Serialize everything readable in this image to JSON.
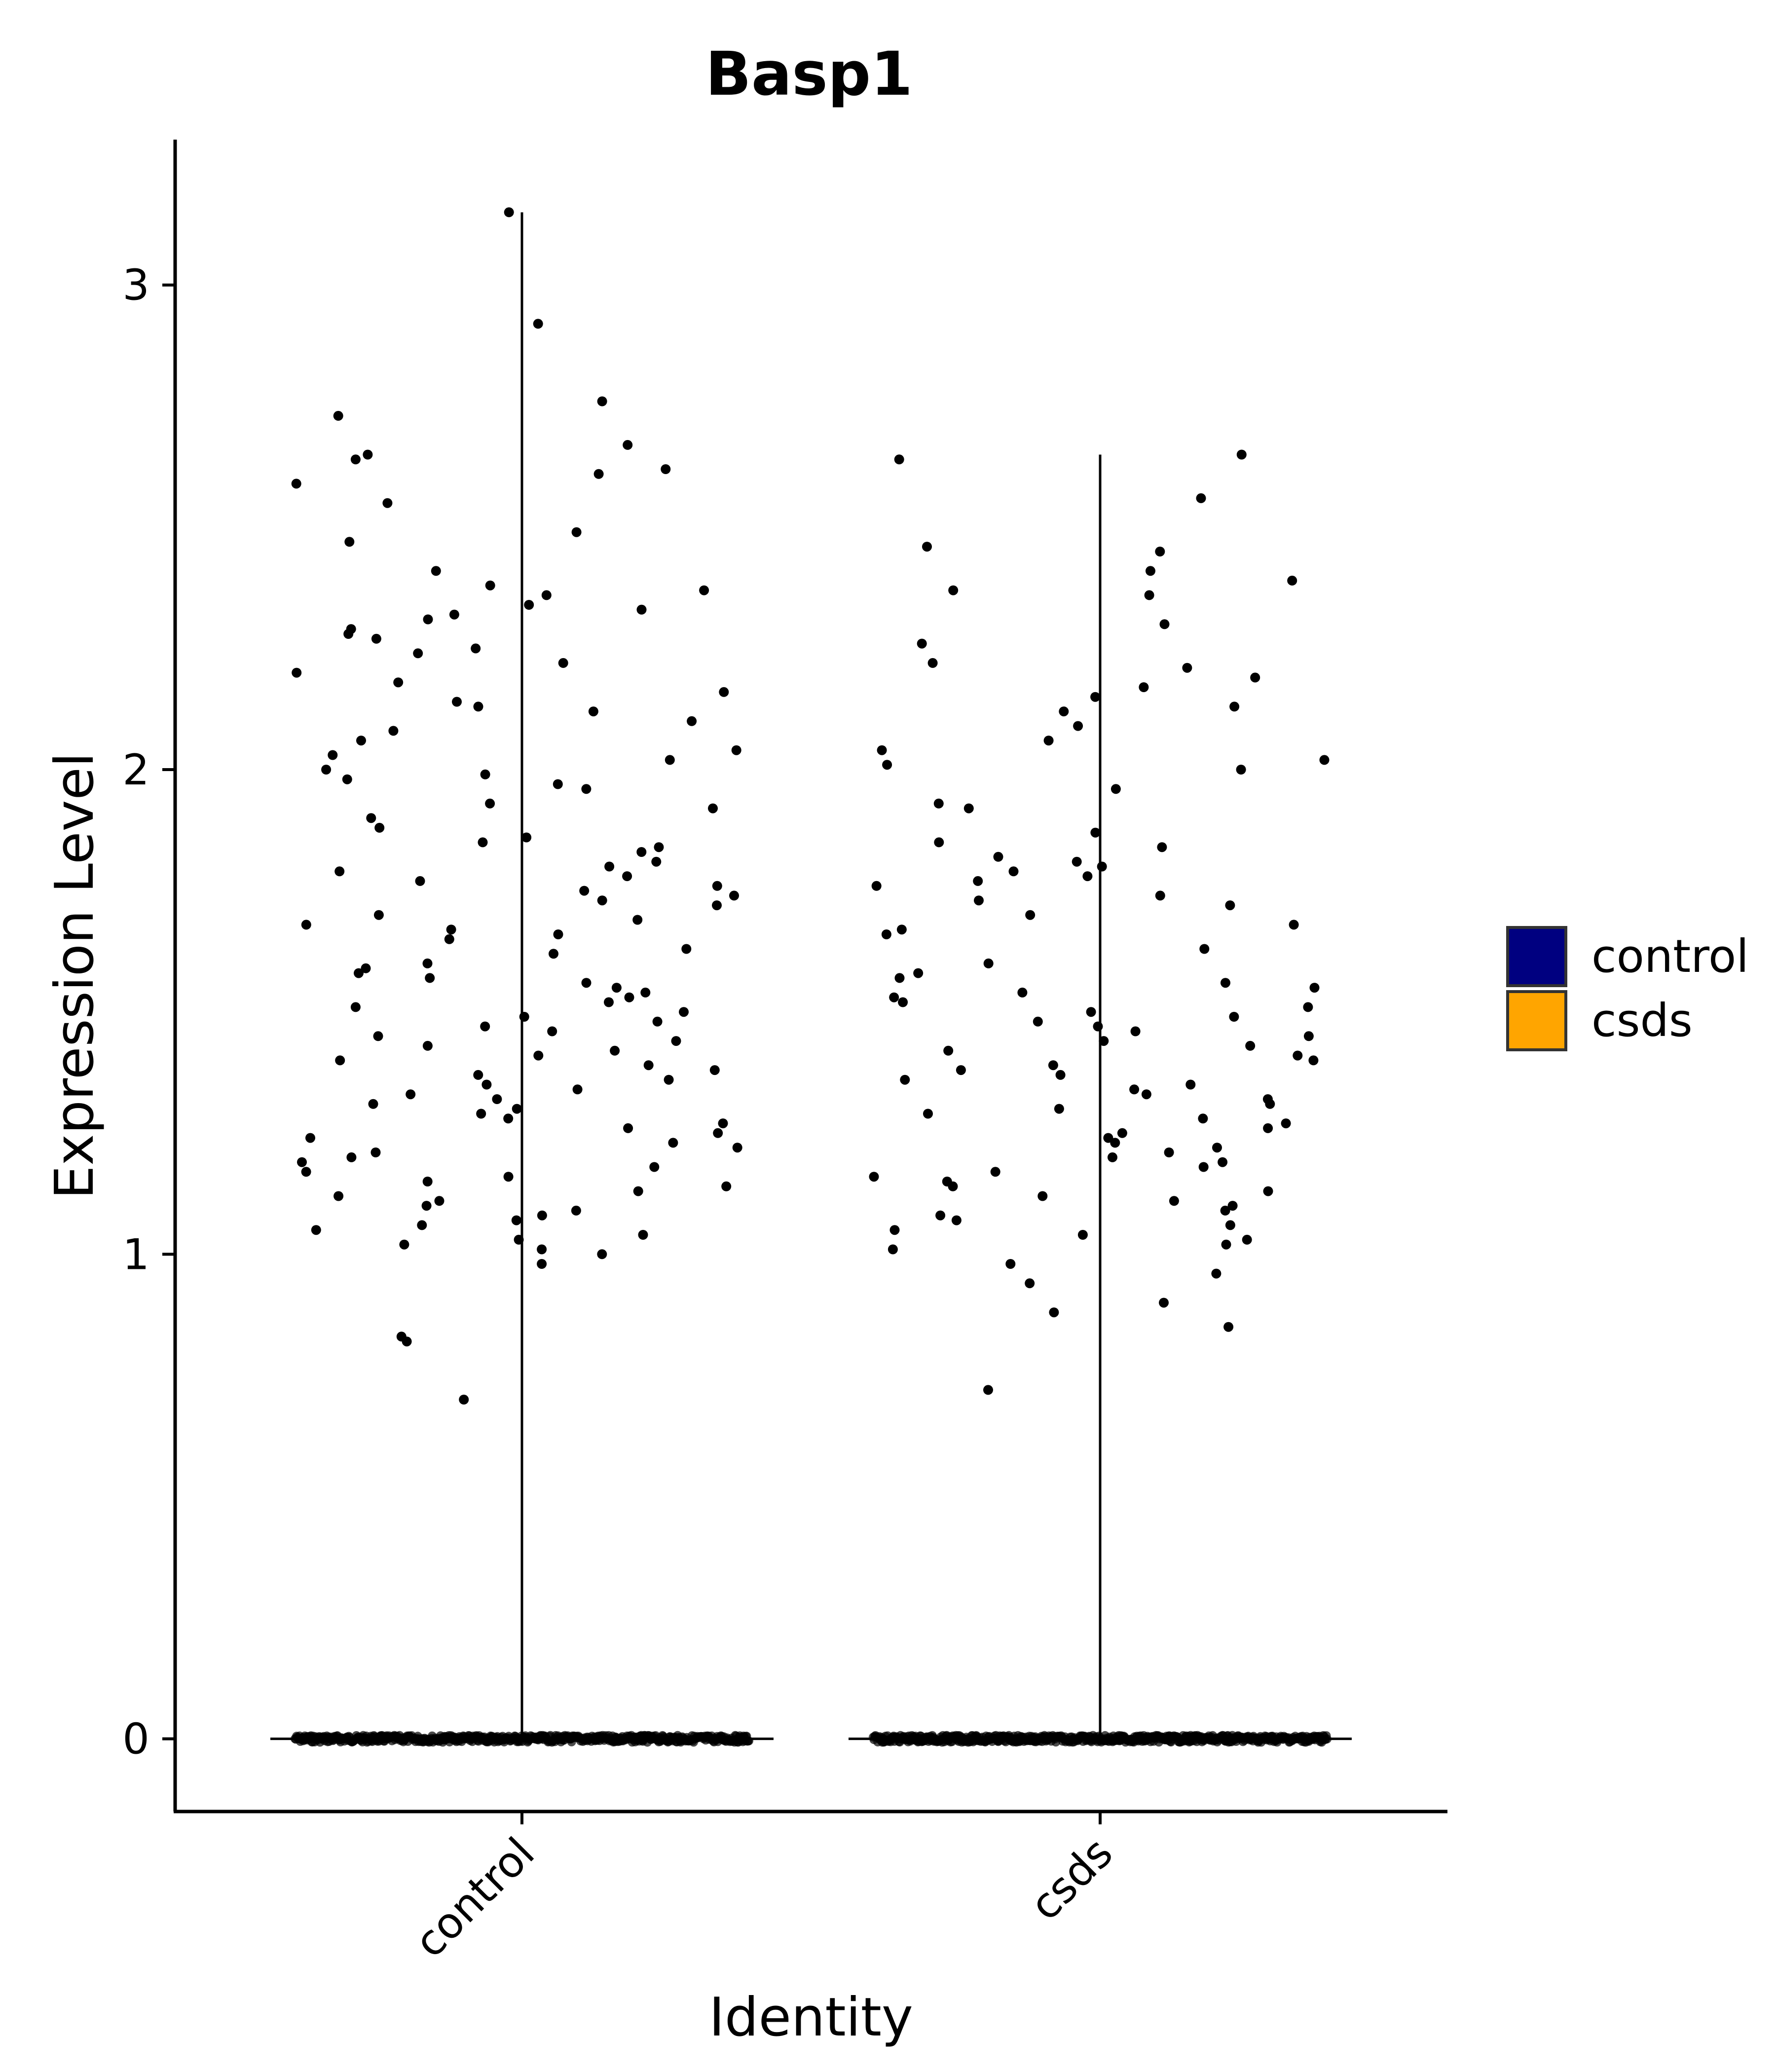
{
  "chart_data": {
    "type": "scatter",
    "subtype": "violin-jitter",
    "title": "Basp1",
    "xlabel": "Identity",
    "ylabel": "Expression Level",
    "categories": [
      "control",
      "csds"
    ],
    "ylim": [
      -0.15,
      3.3
    ],
    "yticks": [
      0,
      1,
      2,
      3
    ],
    "grid": false,
    "legend": {
      "placement": "right",
      "entries": [
        {
          "label": "control",
          "color": "#000080"
        },
        {
          "label": "csds",
          "color": "#FFA500"
        }
      ]
    },
    "series": [
      {
        "category": "control",
        "fill_color": "#000080",
        "max_value": 3.15,
        "zero_count": 1400,
        "nonzero_values": [
          3.15,
          2.92,
          2.76,
          2.73,
          2.67,
          2.65,
          2.64,
          2.62,
          2.61,
          2.59,
          2.55,
          2.49,
          2.47,
          2.41,
          2.38,
          2.37,
          2.36,
          2.34,
          2.33,
          2.32,
          2.31,
          2.29,
          2.28,
          2.27,
          2.25,
          2.24,
          2.22,
          2.2,
          2.18,
          2.16,
          2.14,
          2.13,
          2.12,
          2.1,
          2.08,
          2.06,
          2.04,
          2.03,
          2.02,
          2.0,
          1.99,
          1.98,
          1.97,
          1.96,
          1.93,
          1.92,
          1.9,
          1.88,
          1.86,
          1.85,
          1.84,
          1.83,
          1.81,
          1.8,
          1.79,
          1.78,
          1.77,
          1.76,
          1.75,
          1.74,
          1.73,
          1.72,
          1.7,
          1.69,
          1.68,
          1.67,
          1.66,
          1.65,
          1.63,
          1.62,
          1.6,
          1.59,
          1.58,
          1.57,
          1.56,
          1.55,
          1.54,
          1.53,
          1.52,
          1.51,
          1.5,
          1.49,
          1.48,
          1.47,
          1.46,
          1.45,
          1.44,
          1.43,
          1.42,
          1.41,
          1.4,
          1.39,
          1.38,
          1.37,
          1.36,
          1.35,
          1.34,
          1.33,
          1.32,
          1.31,
          1.3,
          1.29,
          1.28,
          1.27,
          1.26,
          1.25,
          1.24,
          1.23,
          1.22,
          1.21,
          1.2,
          1.19,
          1.18,
          1.17,
          1.16,
          1.15,
          1.14,
          1.13,
          1.12,
          1.11,
          1.1,
          1.09,
          1.08,
          1.07,
          1.06,
          1.05,
          1.04,
          1.03,
          1.02,
          1.01,
          1.0,
          0.98,
          0.83,
          0.82,
          0.7
        ]
      },
      {
        "category": "csds",
        "fill_color": "#FFA500",
        "max_value": 2.65,
        "zero_count": 1200,
        "nonzero_values": [
          2.65,
          2.64,
          2.56,
          2.46,
          2.45,
          2.41,
          2.39,
          2.37,
          2.36,
          2.3,
          2.26,
          2.22,
          2.21,
          2.19,
          2.17,
          2.15,
          2.13,
          2.12,
          2.09,
          2.06,
          2.04,
          2.02,
          2.01,
          2.0,
          1.96,
          1.93,
          1.92,
          1.87,
          1.85,
          1.84,
          1.82,
          1.81,
          1.8,
          1.79,
          1.78,
          1.77,
          1.76,
          1.74,
          1.73,
          1.72,
          1.7,
          1.68,
          1.67,
          1.66,
          1.63,
          1.6,
          1.58,
          1.57,
          1.56,
          1.55,
          1.54,
          1.53,
          1.52,
          1.51,
          1.5,
          1.49,
          1.48,
          1.47,
          1.46,
          1.45,
          1.44,
          1.43,
          1.42,
          1.41,
          1.4,
          1.39,
          1.38,
          1.37,
          1.36,
          1.35,
          1.34,
          1.33,
          1.32,
          1.31,
          1.3,
          1.29,
          1.28,
          1.27,
          1.26,
          1.25,
          1.24,
          1.23,
          1.22,
          1.21,
          1.2,
          1.19,
          1.18,
          1.17,
          1.16,
          1.15,
          1.14,
          1.13,
          1.12,
          1.11,
          1.1,
          1.09,
          1.08,
          1.07,
          1.06,
          1.05,
          1.04,
          1.03,
          1.02,
          1.01,
          0.98,
          0.96,
          0.94,
          0.9,
          0.88,
          0.85,
          0.72
        ]
      }
    ]
  }
}
